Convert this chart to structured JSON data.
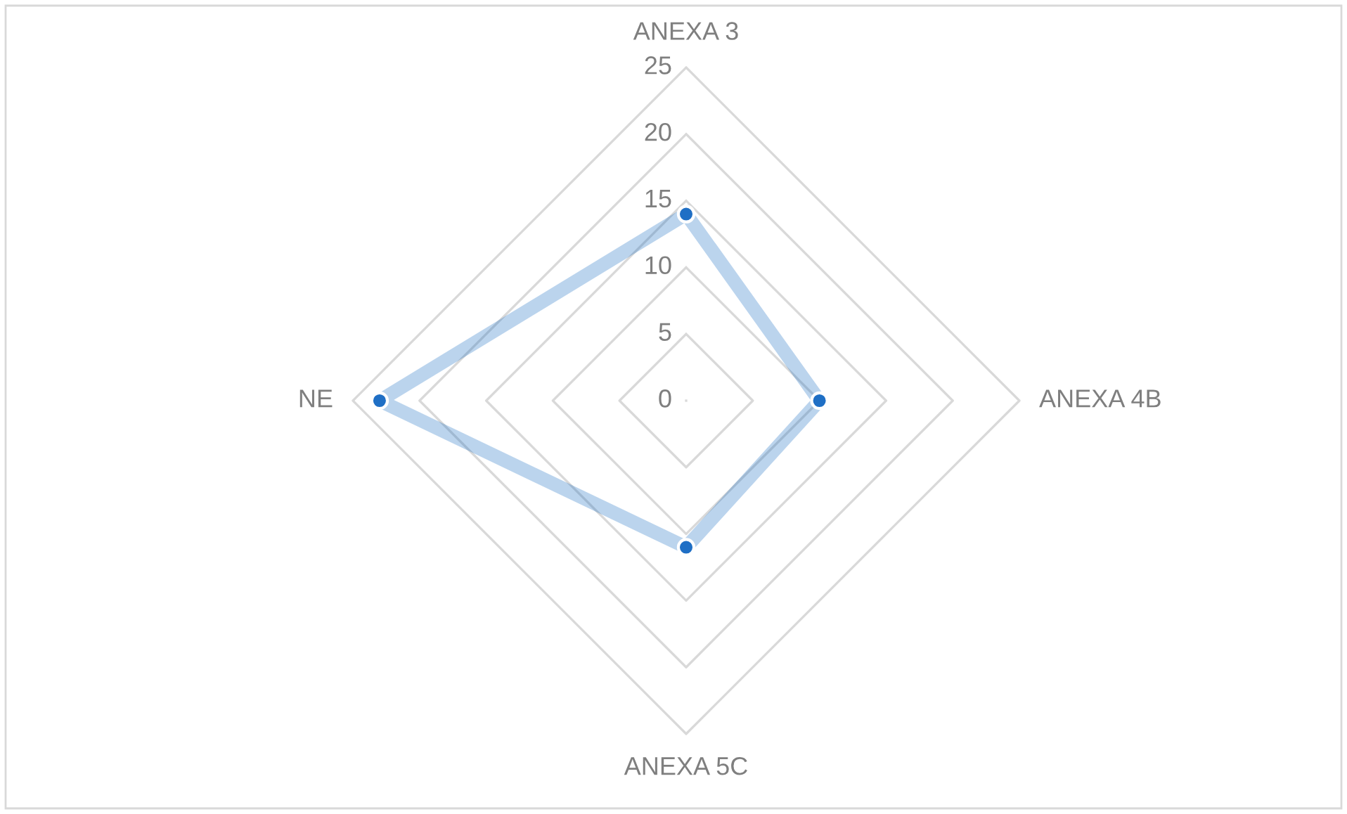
{
  "chart_data": {
    "type": "radar",
    "categories": [
      "ANEXA 3",
      "ANEXA 4B",
      "ANEXA 5C",
      "NE"
    ],
    "series": [
      {
        "color": "#1f6fc5",
        "values": [
          14,
          10,
          11,
          23
        ]
      }
    ],
    "ylim": [
      0,
      25
    ],
    "yticks": [
      0,
      5,
      10,
      15,
      20,
      25
    ],
    "grid": true,
    "marker": "circle"
  }
}
